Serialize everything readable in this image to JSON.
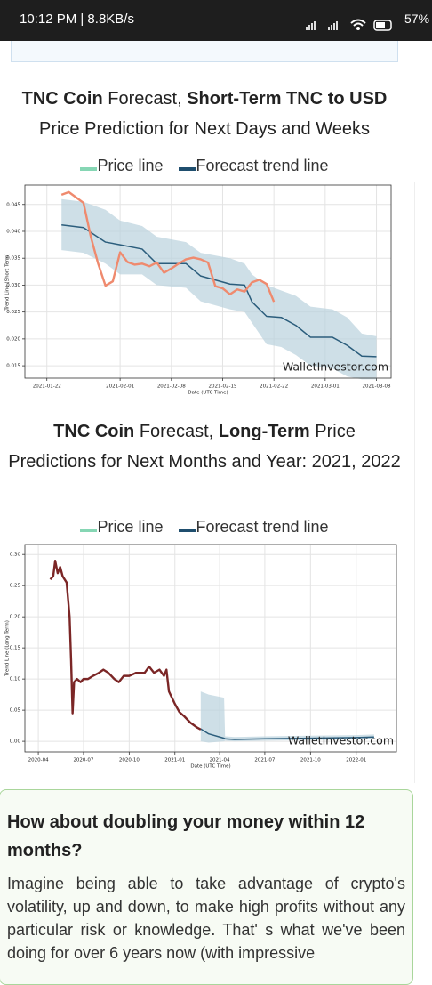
{
  "status_bar": {
    "time": "10:12 PM | 8.8KB/s",
    "battery": "57%"
  },
  "headings": [
    {
      "parts": [
        {
          "text": "TNC Coin",
          "bold": true
        },
        {
          "text": " Forecast, ",
          "bold": false
        },
        {
          "text": "Short-Term TNC to USD",
          "bold": true
        },
        {
          "text": " Price Prediction for Next Days and Weeks",
          "bold": false
        }
      ]
    },
    {
      "parts": [
        {
          "text": "TNC Coin",
          "bold": true
        },
        {
          "text": " Forecast, ",
          "bold": false
        },
        {
          "text": "Long-Term",
          "bold": true
        },
        {
          "text": " Price Predictions for Next Months and Year: 2021, 2022",
          "bold": false
        }
      ]
    }
  ],
  "chart_data": [
    {
      "type": "line",
      "y_label": "Trend Line (Short Term)",
      "x_label": "Date (UTC Time)",
      "watermark": "WalletInvestor.com",
      "grid": true,
      "xlim": [
        "2021-01-19",
        "2021-03-10"
      ],
      "xticks": [
        "2021-01-22",
        "2021-02-01",
        "2021-02-08",
        "2021-02-15",
        "2021-02-22",
        "2021-03-01",
        "2021-03-08"
      ],
      "ylim": [
        0.0127,
        0.0486
      ],
      "yticks": [
        0.015,
        {
          "value": 0.02,
          "label": "0.020"
        },
        0.025,
        {
          "value": 0.03,
          "label": "0.030"
        },
        0.035,
        {
          "value": 0.04,
          "label": "0.040"
        },
        0.045
      ],
      "series": [
        {
          "name": "Forecast trend line",
          "color": "#2b5d7c",
          "legend_color": "#1f4e6e",
          "band_color": "#b9d1dd",
          "x": [
            "2021-01-24",
            "2021-01-27",
            "2021-01-30",
            "2021-02-01",
            "2021-02-04",
            "2021-02-06",
            "2021-02-10",
            "2021-02-12",
            "2021-02-16",
            "2021-02-18",
            "2021-02-19",
            "2021-02-21",
            "2021-02-23",
            "2021-02-25",
            "2021-02-27",
            "2021-03-02",
            "2021-03-04",
            "2021-03-06",
            "2021-03-08"
          ],
          "values": [
            0.0412,
            0.0407,
            0.038,
            0.0375,
            0.0367,
            0.034,
            0.034,
            0.0317,
            0.0302,
            0.03,
            0.0269,
            0.0242,
            0.024,
            0.0225,
            0.0203,
            0.0203,
            0.0188,
            0.0168,
            0.0167
          ],
          "band": {
            "upper": [
              0.046,
              0.0455,
              0.044,
              0.042,
              0.041,
              0.039,
              0.038,
              0.036,
              0.035,
              0.034,
              0.032,
              0.03,
              0.029,
              0.028,
              0.026,
              0.0255,
              0.024,
              0.021,
              0.0205
            ],
            "lower": [
              0.0365,
              0.036,
              0.034,
              0.032,
              0.032,
              0.03,
              0.0295,
              0.027,
              0.0255,
              0.025,
              0.023,
              0.019,
              0.0185,
              0.017,
              0.015,
              0.0145,
              0.013,
              0.0125,
              0.0125
            ]
          }
        },
        {
          "name": "Price line",
          "color": "#ef8a6e",
          "legend_color": "#86d6b4",
          "x": [
            "2021-01-24",
            "2021-01-25",
            "2021-01-26",
            "2021-01-27",
            "2021-01-28",
            "2021-01-29",
            "2021-01-30",
            "2021-01-31",
            "2021-02-01",
            "2021-02-02",
            "2021-02-03",
            "2021-02-04",
            "2021-02-05",
            "2021-02-06",
            "2021-02-07",
            "2021-02-08",
            "2021-02-09",
            "2021-02-10",
            "2021-02-11",
            "2021-02-12",
            "2021-02-13",
            "2021-02-14",
            "2021-02-15",
            "2021-02-16",
            "2021-02-17",
            "2021-02-18",
            "2021-02-19",
            "2021-02-20",
            "2021-02-21",
            "2021-02-22"
          ],
          "values": [
            0.0468,
            0.0473,
            0.0463,
            0.0453,
            0.039,
            0.034,
            0.0299,
            0.0307,
            0.0361,
            0.0343,
            0.0338,
            0.034,
            0.0335,
            0.0342,
            0.0323,
            0.0331,
            0.034,
            0.0348,
            0.0351,
            0.0348,
            0.0342,
            0.0298,
            0.0294,
            0.0283,
            0.0292,
            0.0288,
            0.0305,
            0.031,
            0.0302,
            0.0269
          ]
        }
      ]
    },
    {
      "type": "line",
      "y_label": "Trend Line (Long Term)",
      "x_label": "Date (UTC Time)",
      "watermark": "WalletInvestor.com",
      "grid": true,
      "xlim": [
        "2020-03-05",
        "2022-03-23"
      ],
      "xticks": [
        "2020-04",
        "2020-07",
        "2020-10",
        "2021-01",
        "2021-04",
        "2021-07",
        "2021-10",
        "2022-01"
      ],
      "ylim": [
        -0.017,
        0.316
      ],
      "yticks": [
        {
          "value": 0,
          "label": "0.00"
        },
        0.05,
        {
          "value": 0.1,
          "label": "0.10"
        },
        0.15,
        {
          "value": 0.2,
          "label": "0.20"
        },
        0.25,
        {
          "value": 0.3,
          "label": "0.30"
        }
      ],
      "series": [
        {
          "name": "Forecast trend line",
          "color": "#2b5d7c",
          "legend_color": "#1f4e6e",
          "band_color": "#b9d1dd",
          "x": [
            "2021-02-22",
            "2021-03-10",
            "2021-04-10",
            "2021-04-12",
            "2021-05-01",
            "2021-07-01",
            "2021-10-01",
            "2022-01-01",
            "2022-02-06"
          ],
          "values": [
            0.02,
            0.012,
            0.005,
            0.004,
            0.003,
            0.004,
            0.005,
            0.006,
            0.007
          ],
          "band": {
            "upper": [
              0.08,
              0.075,
              0.07,
              0.008,
              0.007,
              0.008,
              0.009,
              0.01,
              0.011
            ],
            "lower": [
              0.0,
              -0.002,
              0.0,
              0.001,
              0.0,
              0.001,
              0.002,
              0.003,
              0.004
            ]
          }
        },
        {
          "name": "Price line",
          "color": "#7b2626",
          "legend_color": "#86d6b4",
          "x": [
            "2020-04-25",
            "2020-05-01",
            "2020-05-05",
            "2020-05-10",
            "2020-05-15",
            "2020-05-20",
            "2020-05-28",
            "2020-06-03",
            "2020-06-06",
            "2020-06-09",
            "2020-06-12",
            "2020-06-18",
            "2020-06-25",
            "2020-07-01",
            "2020-07-10",
            "2020-07-20",
            "2020-08-01",
            "2020-08-10",
            "2020-08-20",
            "2020-09-01",
            "2020-09-10",
            "2020-09-20",
            "2020-10-01",
            "2020-10-15",
            "2020-11-01",
            "2020-11-10",
            "2020-11-20",
            "2020-12-01",
            "2020-12-10",
            "2020-12-15",
            "2020-12-20",
            "2021-01-01",
            "2021-01-10",
            "2021-01-20",
            "2021-02-01",
            "2021-02-15",
            "2021-02-22"
          ],
          "values": [
            0.26,
            0.265,
            0.29,
            0.27,
            0.28,
            0.265,
            0.255,
            0.2,
            0.13,
            0.045,
            0.095,
            0.1,
            0.095,
            0.1,
            0.1,
            0.105,
            0.11,
            0.115,
            0.11,
            0.1,
            0.095,
            0.105,
            0.105,
            0.11,
            0.11,
            0.12,
            0.11,
            0.115,
            0.105,
            0.115,
            0.08,
            0.06,
            0.047,
            0.04,
            0.03,
            0.022,
            0.019
          ]
        }
      ]
    }
  ],
  "promo": {
    "title": "How about doubling your money within 12 months?",
    "text": "Imagine being able to take advantage of crypto's volatility, up and down, to make high profits without any particular risk or knowledge. That' s what we've been doing for over 6 years now (with impressive"
  }
}
